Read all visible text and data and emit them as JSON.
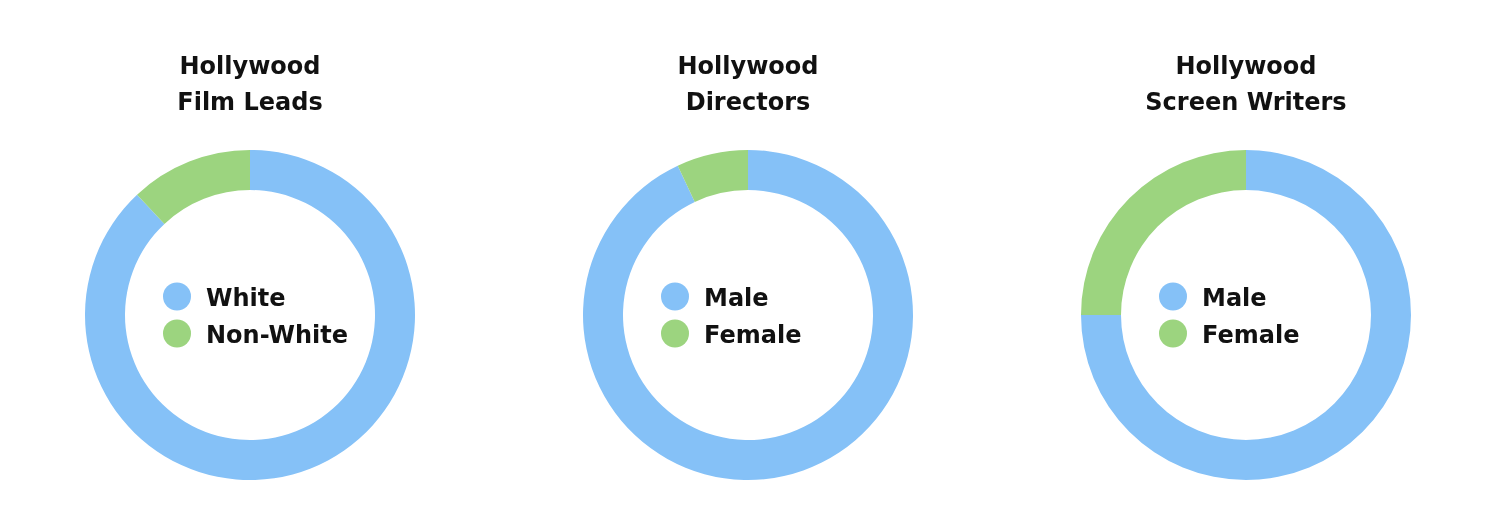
{
  "chart_data": [
    {
      "type": "donut",
      "title": "Hollywood\nFilm Leads",
      "categories": [
        "White",
        "Non-White"
      ],
      "values": [
        88,
        12
      ],
      "colors": [
        "#85c1f7",
        "#9cd47f"
      ],
      "legend": "center"
    },
    {
      "type": "donut",
      "title": "Hollywood\nDirectors",
      "categories": [
        "Male",
        "Female"
      ],
      "values": [
        93,
        7
      ],
      "colors": [
        "#85c1f7",
        "#9cd47f"
      ],
      "legend": "center"
    },
    {
      "type": "donut",
      "title": "Hollywood\nScreen Writers",
      "categories": [
        "Male",
        "Female"
      ],
      "values": [
        75,
        25
      ],
      "colors": [
        "#85c1f7",
        "#9cd47f"
      ],
      "legend": "center"
    }
  ]
}
